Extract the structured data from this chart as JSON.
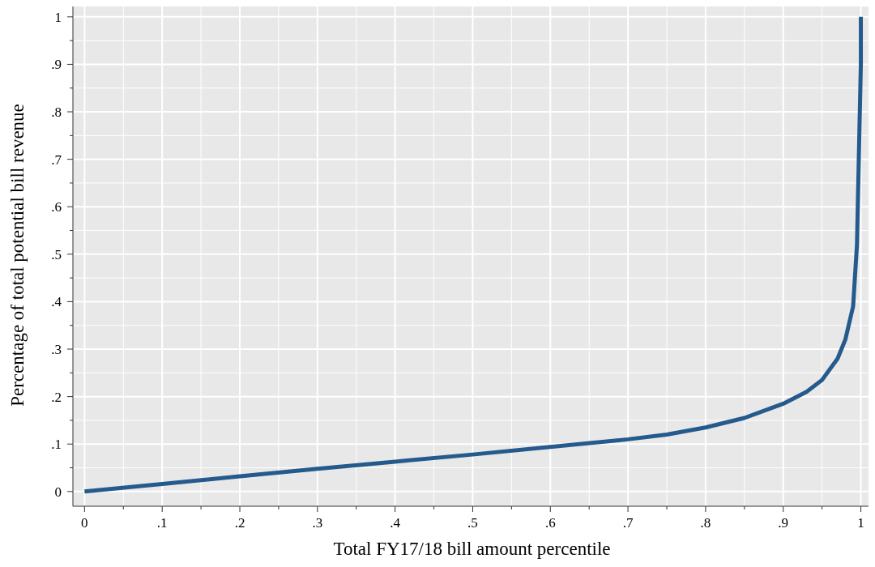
{
  "chart_data": {
    "type": "line",
    "xlabel": "Total FY17/18 bill amount percentile",
    "ylabel": "Percentage of total potential bill revenue",
    "x": [
      0,
      0.1,
      0.2,
      0.3,
      0.4,
      0.5,
      0.6,
      0.7,
      0.75,
      0.8,
      0.85,
      0.9,
      0.93,
      0.95,
      0.97,
      0.98,
      0.99,
      0.995,
      0.998,
      1.0,
      1.0
    ],
    "series": [
      {
        "color": "#245a8c",
        "values": [
          0,
          0.016,
          0.032,
          0.048,
          0.063,
          0.078,
          0.094,
          0.11,
          0.12,
          0.135,
          0.155,
          0.185,
          0.21,
          0.235,
          0.28,
          0.32,
          0.39,
          0.52,
          0.75,
          0.9,
          1.0
        ]
      }
    ],
    "xlim": [
      -0.015,
      1.013
    ],
    "ylim": [
      -0.031,
      1.027
    ],
    "xticks": [
      0,
      {
        "value": 0.05,
        "label": null
      },
      {
        "value": 0.1,
        "label": ".1"
      },
      {
        "value": 0.15,
        "label": null
      },
      {
        "value": 0.2,
        "label": ".2"
      },
      {
        "value": 0.25,
        "label": null
      },
      {
        "value": 0.3,
        "label": ".3"
      },
      {
        "value": 0.35,
        "label": null
      },
      {
        "value": 0.4,
        "label": ".4"
      },
      {
        "value": 0.45,
        "label": null
      },
      {
        "value": 0.5,
        "label": ".5"
      },
      {
        "value": 0.55,
        "label": null
      },
      {
        "value": 0.6,
        "label": ".6"
      },
      {
        "value": 0.65,
        "label": null
      },
      {
        "value": 0.7,
        "label": ".7"
      },
      {
        "value": 0.75,
        "label": null
      },
      {
        "value": 0.8,
        "label": ".8"
      },
      {
        "value": 0.85,
        "label": null
      },
      {
        "value": 0.9,
        "label": ".9"
      },
      {
        "value": 0.95,
        "label": null
      },
      1
    ],
    "yticks": [
      0,
      {
        "value": 0.05,
        "label": null
      },
      {
        "value": 0.1,
        "label": ".1"
      },
      {
        "value": 0.15,
        "label": null
      },
      {
        "value": 0.2,
        "label": ".2"
      },
      {
        "value": 0.25,
        "label": null
      },
      {
        "value": 0.3,
        "label": ".3"
      },
      {
        "value": 0.35,
        "label": null
      },
      {
        "value": 0.4,
        "label": ".4"
      },
      {
        "value": 0.45,
        "label": null
      },
      {
        "value": 0.5,
        "label": ".5"
      },
      {
        "value": 0.55,
        "label": null
      },
      {
        "value": 0.6,
        "label": ".6"
      },
      {
        "value": 0.65,
        "label": null
      },
      {
        "value": 0.7,
        "label": ".7"
      },
      {
        "value": 0.75,
        "label": null
      },
      {
        "value": 0.8,
        "label": ".8"
      },
      {
        "value": 0.85,
        "label": null
      },
      {
        "value": 0.9,
        "label": ".9"
      },
      {
        "value": 0.95,
        "label": null
      },
      1
    ],
    "grid": true,
    "marker": "none",
    "line_style": "solid"
  }
}
